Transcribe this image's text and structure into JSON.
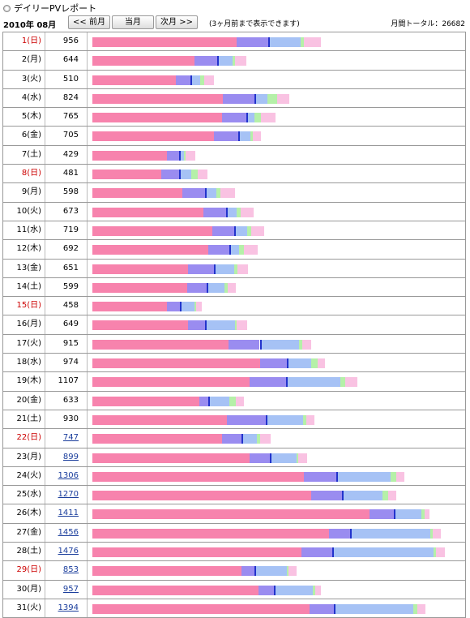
{
  "header": {
    "title": "デイリーPVレポート",
    "month": "2010年 08月",
    "buttons": [
      "<< 前月",
      "当月",
      "次月 >>"
    ],
    "note": "(3ヶ月前まで表示できます)",
    "total_label": "月間トータル：",
    "total": 26682
  },
  "table": {
    "holiday_color": "#cc0000",
    "segment_colors": [
      "#f783ad",
      "#9a8cf0",
      "#a6c2f5",
      "#b5f0a8",
      "#f9c2e2"
    ],
    "rows": [
      {
        "day": "1(日)",
        "pv": 956,
        "holiday": true,
        "link": false,
        "segments": [
          604,
          130,
          137,
          14,
          71
        ]
      },
      {
        "day": "2(月)",
        "pv": 644,
        "holiday": false,
        "link": false,
        "segments": [
          427,
          96,
          65,
          10,
          46
        ]
      },
      {
        "day": "3(火)",
        "pv": 510,
        "holiday": false,
        "link": false,
        "segments": [
          349,
          62,
          41,
          17,
          41
        ]
      },
      {
        "day": "4(水)",
        "pv": 824,
        "holiday": false,
        "link": false,
        "segments": [
          545,
          133,
          54,
          41,
          51
        ]
      },
      {
        "day": "5(木)",
        "pv": 765,
        "holiday": false,
        "link": false,
        "segments": [
          544,
          99,
          34,
          27,
          61
        ]
      },
      {
        "day": "6(金)",
        "pv": 705,
        "holiday": false,
        "link": false,
        "segments": [
          508,
          102,
          51,
          10,
          34
        ]
      },
      {
        "day": "7(土)",
        "pv": 429,
        "holiday": false,
        "link": false,
        "segments": [
          313,
          51,
          20,
          7,
          38
        ]
      },
      {
        "day": "8(日)",
        "pv": 481,
        "holiday": true,
        "link": false,
        "segments": [
          287,
          75,
          51,
          27,
          41
        ]
      },
      {
        "day": "9(月)",
        "pv": 598,
        "holiday": false,
        "link": false,
        "segments": [
          376,
          96,
          48,
          17,
          61
        ]
      },
      {
        "day": "10(火)",
        "pv": 673,
        "holiday": false,
        "link": false,
        "segments": [
          466,
          95,
          41,
          20,
          51
        ]
      },
      {
        "day": "11(水)",
        "pv": 719,
        "holiday": false,
        "link": false,
        "segments": [
          501,
          92,
          55,
          17,
          54
        ]
      },
      {
        "day": "12(木)",
        "pv": 692,
        "holiday": false,
        "link": false,
        "segments": [
          486,
          86,
          41,
          21,
          58
        ]
      },
      {
        "day": "13(金)",
        "pv": 651,
        "holiday": false,
        "link": false,
        "segments": [
          401,
          106,
          86,
          14,
          44
        ]
      },
      {
        "day": "14(土)",
        "pv": 599,
        "holiday": false,
        "link": false,
        "segments": [
          397,
          82,
          72,
          14,
          34
        ]
      },
      {
        "day": "15(日)",
        "pv": 458,
        "holiday": true,
        "link": false,
        "segments": [
          311,
          55,
          62,
          7,
          23
        ]
      },
      {
        "day": "16(月)",
        "pv": 649,
        "holiday": false,
        "link": false,
        "segments": [
          400,
          72,
          126,
          7,
          44
        ]
      },
      {
        "day": "17(火)",
        "pv": 915,
        "holiday": false,
        "link": false,
        "segments": [
          570,
          130,
          164,
          14,
          37
        ]
      },
      {
        "day": "18(水)",
        "pv": 974,
        "holiday": false,
        "link": false,
        "segments": [
          702,
          112,
          102,
          27,
          31
        ]
      },
      {
        "day": "19(木)",
        "pv": 1107,
        "holiday": false,
        "link": false,
        "segments": [
          656,
          154,
          226,
          20,
          51
        ]
      },
      {
        "day": "20(金)",
        "pv": 633,
        "holiday": false,
        "link": false,
        "segments": [
          449,
          37,
          88,
          27,
          32
        ]
      },
      {
        "day": "21(土)",
        "pv": 930,
        "holiday": false,
        "link": false,
        "segments": [
          564,
          161,
          157,
          14,
          34
        ]
      },
      {
        "day": "22(日)",
        "pv": 747,
        "holiday": true,
        "link": true,
        "segments": [
          542,
          82,
          65,
          14,
          44
        ]
      },
      {
        "day": "23(月)",
        "pv": 899,
        "holiday": false,
        "link": true,
        "segments": [
          657,
          85,
          112,
          7,
          38
        ]
      },
      {
        "day": "24(火)",
        "pv": 1306,
        "holiday": false,
        "link": true,
        "segments": [
          884,
          137,
          226,
          24,
          35
        ]
      },
      {
        "day": "25(水)",
        "pv": 1270,
        "holiday": false,
        "link": true,
        "segments": [
          914,
          129,
          170,
          24,
          33
        ]
      },
      {
        "day": "26(木)",
        "pv": 1411,
        "holiday": false,
        "link": true,
        "segments": [
          1159,
          102,
          116,
          14,
          20
        ]
      },
      {
        "day": "27(金)",
        "pv": 1456,
        "holiday": false,
        "link": true,
        "segments": [
          991,
          88,
          334,
          10,
          33
        ]
      },
      {
        "day": "28(土)",
        "pv": 1476,
        "holiday": false,
        "link": true,
        "segments": [
          873,
          132,
          423,
          10,
          38
        ]
      },
      {
        "day": "29(日)",
        "pv": 853,
        "holiday": true,
        "link": true,
        "segments": [
          624,
          55,
          133,
          7,
          34
        ]
      },
      {
        "day": "30(月)",
        "pv": 957,
        "holiday": false,
        "link": true,
        "segments": [
          696,
          64,
          163,
          10,
          24
        ]
      },
      {
        "day": "31(火)",
        "pv": 1394,
        "holiday": false,
        "link": true,
        "segments": [
          910,
          101,
          332,
          17,
          34
        ]
      }
    ]
  }
}
